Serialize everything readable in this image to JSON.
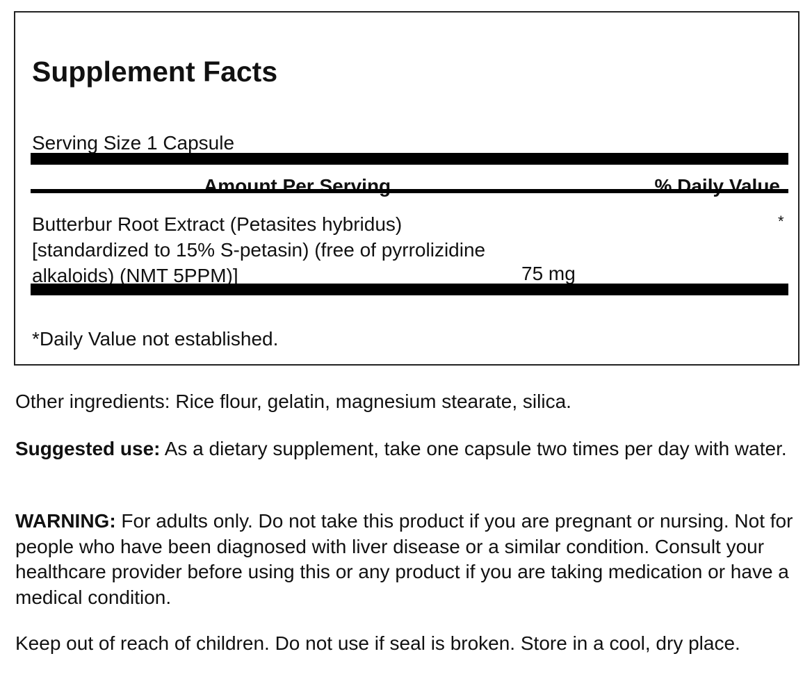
{
  "title": "Supplement Facts",
  "serving_size": "Serving Size 1 Capsule",
  "table": {
    "headers": [
      "Amount Per Serving",
      "% Daily Value"
    ],
    "rows": [
      {
        "ingredient": "Butterbur Root Extract (Petasites hybridus) [standardized to 15% S-petasin) (free of pyrrolizidine alkaloids) (NMT 5PPM)]",
        "lines": [
          "Butterbur Root Extract (Petasites hybridus)",
          "[standardized to 15% S-petasin) (free of pyrrolizidine",
          "alkaloids) (NMT 5PPM)]"
        ],
        "amount": "75 mg",
        "daily_value": "*"
      }
    ]
  },
  "footnote": "*Daily Value not established.",
  "other_ingredients": "Other ingredients: Rice flour, gelatin, magnesium stearate, silica.",
  "suggested_use": {
    "label": "Suggested use:",
    "text": " As a dietary supplement, take one capsule two times per day with water."
  },
  "warning": {
    "label": "WARNING:",
    "text": " For adults only. Do not take this product if you are pregnant or nursing. Not for people who have been diagnosed with liver disease or a similar condition. Consult your healthcare provider before using this or any product if you are taking medication or have a medical condition."
  },
  "storage": "Keep out of reach of children. Do not use if seal is broken. Store in a cool, dry place."
}
